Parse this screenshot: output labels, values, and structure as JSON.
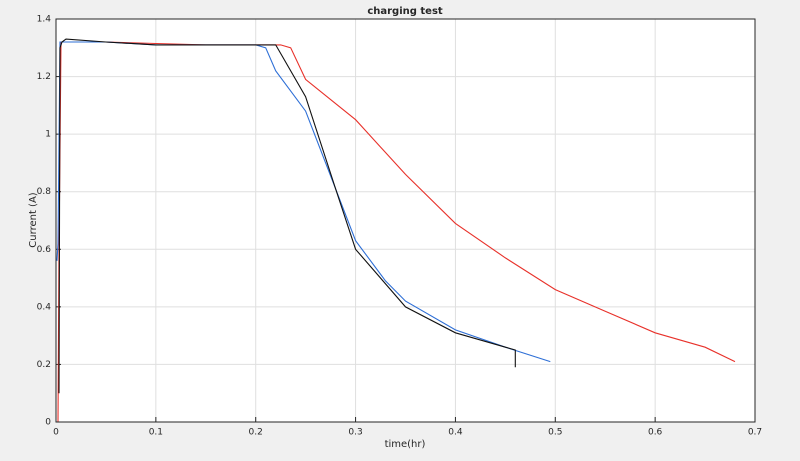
{
  "chart_data": {
    "type": "line",
    "title": "charging test",
    "x_label": "time(hr)",
    "y_label": "Current (A)",
    "xlim": [
      0,
      0.7
    ],
    "xticks": [
      0,
      0.1,
      0.2,
      0.3,
      0.4,
      0.5,
      0.6,
      0.7
    ],
    "ylim": [
      0,
      1.4
    ],
    "yticks": [
      0,
      0.2,
      0.4,
      0.6,
      0.8,
      1,
      1.2,
      1.4
    ],
    "grid": true,
    "series": [
      {
        "color": "#e8312a",
        "x": [
          0.002,
          0.003,
          0.005,
          0.01,
          0.05,
          0.1,
          0.15,
          0.2,
          0.225,
          0.235,
          0.25,
          0.275,
          0.3,
          0.35,
          0.4,
          0.45,
          0.5,
          0.55,
          0.6,
          0.65,
          0.68
        ],
        "values": [
          0,
          0.6,
          1.32,
          1.32,
          1.32,
          1.315,
          1.31,
          1.31,
          1.31,
          1.3,
          1.19,
          1.12,
          1.05,
          0.86,
          0.69,
          0.57,
          0.46,
          0.385,
          0.31,
          0.26,
          0.21
        ]
      },
      {
        "color": "#2e6fd6",
        "x": [
          0.001,
          0.002,
          0.004,
          0.01,
          0.05,
          0.1,
          0.15,
          0.2,
          0.21,
          0.22,
          0.25,
          0.28,
          0.3,
          0.33,
          0.35,
          0.4,
          0.45,
          0.495
        ],
        "values": [
          0.56,
          0.62,
          1.32,
          1.32,
          1.32,
          1.31,
          1.31,
          1.31,
          1.3,
          1.22,
          1.08,
          0.81,
          0.63,
          0.49,
          0.42,
          0.32,
          0.26,
          0.21
        ]
      },
      {
        "color": "#111111",
        "x": [
          0.003,
          0.004,
          0.006,
          0.01,
          0.05,
          0.1,
          0.15,
          0.2,
          0.22,
          0.225,
          0.25,
          0.28,
          0.3,
          0.35,
          0.4,
          0.45,
          0.46,
          0.46
        ],
        "values": [
          0.1,
          1.3,
          1.32,
          1.33,
          1.32,
          1.31,
          1.31,
          1.31,
          1.31,
          1.28,
          1.13,
          0.81,
          0.6,
          0.4,
          0.31,
          0.26,
          0.25,
          0.19
        ]
      }
    ]
  }
}
